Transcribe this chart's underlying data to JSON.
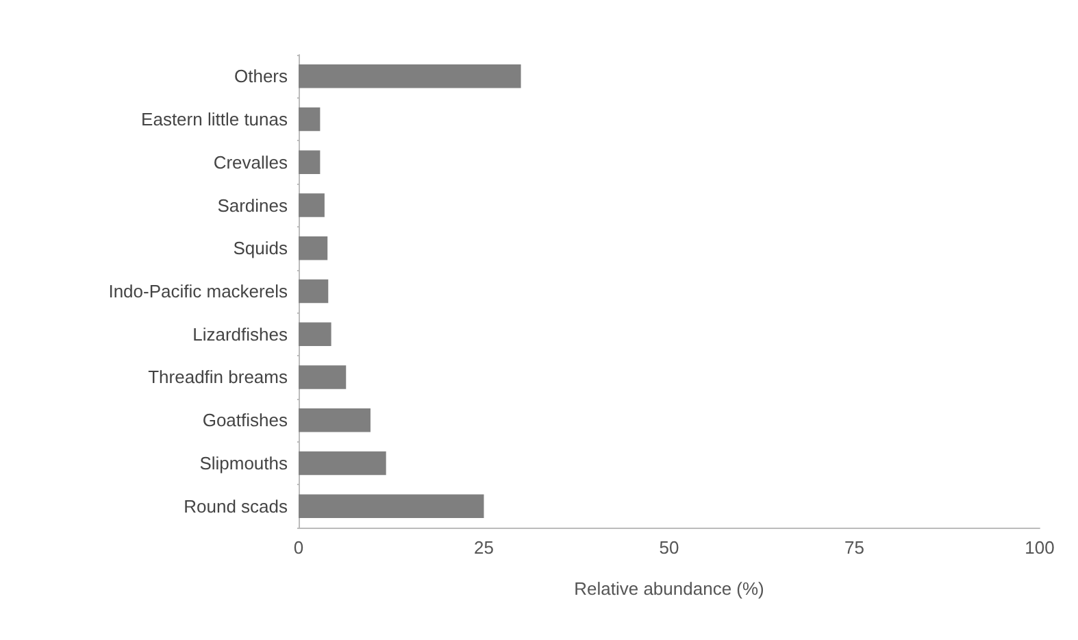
{
  "chart_data": {
    "type": "bar",
    "orientation": "horizontal",
    "xlabel": "Relative abundance (%)",
    "categories": [
      "Others",
      "Eastern little tunas",
      "Crevalles",
      "Sardines",
      "Squids",
      "Indo-Pacific mackerels",
      "Lizardfishes",
      "Threadfin breams",
      "Goatfishes",
      "Slipmouths",
      "Round scads"
    ],
    "values": [
      30,
      2.9,
      2.9,
      3.5,
      3.9,
      4,
      4.4,
      6.4,
      9.7,
      11.8,
      25
    ],
    "color": "#7f7f7f",
    "xlim": [
      0,
      100
    ],
    "xticks": [
      0,
      25,
      50,
      75,
      100
    ],
    "grid": false
  }
}
